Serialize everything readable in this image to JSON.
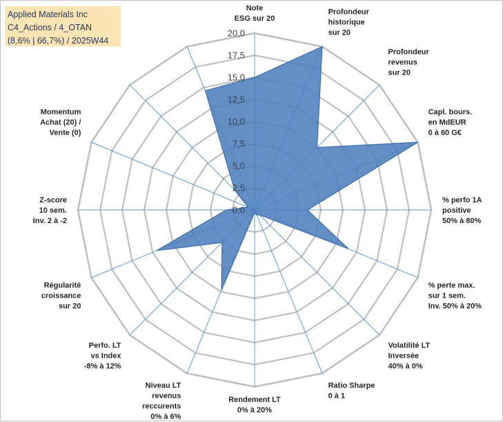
{
  "title": {
    "line1": "Applied Materials Inc",
    "line2": "C4_Actions / 4_OTAN",
    "line3": "(8,6% | 66,7%) / 2025W44"
  },
  "chart_data": {
    "type": "radar",
    "title": "Applied Materials Inc",
    "range": [
      0,
      20
    ],
    "grid_step": 2.5,
    "tick_labels": [
      "0,0",
      "2,5",
      "5,0",
      "7,5",
      "10,0",
      "12,5",
      "15,0",
      "17,5",
      "20,0"
    ],
    "axes": [
      {
        "label": [
          "Note",
          "ESG sur 20"
        ],
        "value": 15.0
      },
      {
        "label": [
          "Profondeur",
          "historique",
          "sur 20"
        ],
        "value": 20.0
      },
      {
        "label": [
          "Profondeur",
          "revenus",
          "sur 20"
        ],
        "value": 10.0
      },
      {
        "label": [
          "Capl. bours.",
          "en MdEUR",
          "0 à 60 G€"
        ],
        "value": 20.0
      },
      {
        "label": [
          "% perfo 1A",
          "positive",
          "50% à 80%"
        ],
        "value": 6.0
      },
      {
        "label": [
          "% perte max.",
          "sur 1 sem.",
          "Inv. 50% à 20%"
        ],
        "value": 11.5
      },
      {
        "label": [
          "Volatilité LT",
          "Inversée",
          "40% à 0%"
        ],
        "value": 0.8
      },
      {
        "label": [
          "Ratio Sharpe",
          "0 à 1"
        ],
        "value": 0.6
      },
      {
        "label": [
          "Rendement LT",
          "0% à 20%"
        ],
        "value": 0.3
      },
      {
        "label": [
          "Niveau LT",
          "revenus",
          "reccurents",
          "0% à 6%"
        ],
        "value": 9.8
      },
      {
        "label": [
          "Perfo. LT",
          "vs Index",
          "-8% à 12%"
        ],
        "value": 5.2
      },
      {
        "label": [
          "Régularité",
          "croissance",
          "sur 20"
        ],
        "value": 12.0
      },
      {
        "label": [
          "Z-score",
          "10 sem.",
          "Inv. 2 à -2"
        ],
        "value": 3.2
      },
      {
        "label": [
          "Momentum",
          "Achat (20) /",
          "Vente (0)"
        ],
        "value": 0.8
      },
      {
        "label": [],
        "value": 3.2
      },
      {
        "label": [],
        "value": 14.6
      }
    ],
    "colors": {
      "fill": "#4f7fbd",
      "fill_opacity": 0.88,
      "stroke": "#3f6ea8",
      "grid": "#bfbfbf",
      "spoke": "#5b9bd5"
    }
  }
}
